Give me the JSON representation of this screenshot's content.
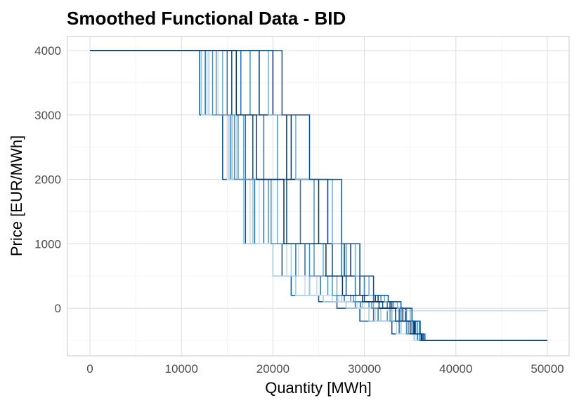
{
  "chart_data": {
    "type": "line",
    "title": "Smoothed Functional Data - BID",
    "xlabel": "Quantity [MWh]",
    "ylabel": "Price [EUR/MWh]",
    "xlim": [
      0,
      50000
    ],
    "ylim": [
      -500,
      4000
    ],
    "x_ticks": [
      0,
      10000,
      20000,
      30000,
      40000,
      50000
    ],
    "x_tick_labels": [
      "0",
      "10000",
      "20000",
      "30000",
      "40000",
      "50000"
    ],
    "y_ticks": [
      0,
      1000,
      2000,
      3000,
      4000
    ],
    "y_tick_labels": [
      "0",
      "1000",
      "2000",
      "3000",
      "4000"
    ],
    "grid": true,
    "legend": "none",
    "palette": [
      "#08306b",
      "#08519c",
      "#2171b5",
      "#4292c6",
      "#6baed6",
      "#9ecae1",
      "#c6dbef"
    ],
    "step_levels": [
      4000,
      3000,
      2000,
      1000,
      500,
      200,
      0,
      -500
    ],
    "series": [
      {
        "color": "#08519c",
        "x": [
          0,
          12000,
          14500,
          17000,
          21000,
          22000,
          25000,
          27000,
          29500,
          33000,
          36000,
          50000
        ],
        "y": [
          4000,
          3000,
          2000,
          1000,
          500,
          200,
          100,
          0,
          -200,
          -400,
          -500,
          -500
        ]
      },
      {
        "color": "#2171b5",
        "x": [
          0,
          12600,
          15400,
          18000,
          22500,
          24000,
          27000,
          29000,
          31000,
          34000,
          36500,
          50000
        ],
        "y": [
          4000,
          3000,
          2000,
          1000,
          500,
          200,
          100,
          0,
          -200,
          -400,
          -500,
          -500
        ]
      },
      {
        "color": "#4292c6",
        "x": [
          0,
          13800,
          16200,
          19500,
          24500,
          26000,
          28500,
          30500,
          32500,
          34800,
          36600,
          50000
        ],
        "y": [
          4000,
          3000,
          2000,
          1000,
          500,
          200,
          100,
          0,
          -200,
          -400,
          -500,
          -500
        ]
      },
      {
        "color": "#08306b",
        "x": [
          0,
          20000,
          22000,
          26000,
          28500,
          30000,
          31500,
          33000,
          34500,
          35500,
          36300,
          50000
        ],
        "y": [
          4000,
          3000,
          2000,
          1000,
          500,
          200,
          100,
          0,
          -200,
          -400,
          -500,
          -500
        ]
      },
      {
        "color": "#c6dbef",
        "x": [
          0,
          12800,
          15000,
          17500,
          21500,
          23500,
          26500,
          29500,
          32500,
          35000,
          36500,
          50000
        ],
        "y": [
          4000,
          3000,
          2000,
          1000,
          500,
          200,
          100,
          0,
          -40,
          -40,
          -40,
          -40
        ]
      },
      {
        "color": "#9ecae1",
        "x": [
          0,
          13000,
          15200,
          17800,
          22000,
          24000,
          27500,
          29800,
          31800,
          34000,
          35800,
          50000
        ],
        "y": [
          4000,
          3000,
          2000,
          1000,
          500,
          200,
          100,
          0,
          -200,
          -400,
          -500,
          -500
        ]
      },
      {
        "color": "#6baed6",
        "x": [
          0,
          14500,
          16800,
          20500,
          25500,
          27000,
          29000,
          31000,
          33000,
          35000,
          36400,
          50000
        ],
        "y": [
          4000,
          3000,
          2000,
          1000,
          500,
          200,
          100,
          0,
          -200,
          -400,
          -500,
          -500
        ]
      },
      {
        "color": "#08519c",
        "x": [
          0,
          15500,
          17800,
          21500,
          26500,
          28000,
          30000,
          32000,
          33800,
          35200,
          36200,
          50000
        ],
        "y": [
          4000,
          3000,
          2000,
          1000,
          500,
          200,
          100,
          0,
          -200,
          -400,
          -500,
          -500
        ]
      },
      {
        "color": "#2171b5",
        "x": [
          0,
          16500,
          19000,
          23000,
          27500,
          29000,
          31000,
          32500,
          34000,
          35600,
          36500,
          50000
        ],
        "y": [
          4000,
          3000,
          2000,
          1000,
          500,
          200,
          100,
          0,
          -200,
          -400,
          -500,
          -500
        ]
      },
      {
        "color": "#4292c6",
        "x": [
          0,
          17500,
          20500,
          24500,
          28000,
          30000,
          31800,
          33200,
          34600,
          35800,
          36600,
          50000
        ],
        "y": [
          4000,
          3000,
          2000,
          1000,
          500,
          200,
          100,
          0,
          -200,
          -400,
          -500,
          -500
        ]
      },
      {
        "color": "#08306b",
        "x": [
          0,
          18500,
          21500,
          25000,
          27800,
          29500,
          31200,
          32800,
          34200,
          35400,
          36300,
          50000
        ],
        "y": [
          4000,
          3000,
          2000,
          1000,
          500,
          200,
          100,
          0,
          -200,
          -400,
          -500,
          -500
        ]
      },
      {
        "color": "#6baed6",
        "x": [
          0,
          19500,
          22500,
          26500,
          29000,
          30500,
          32200,
          33600,
          35000,
          36000,
          36650,
          50000
        ],
        "y": [
          4000,
          3000,
          2000,
          1000,
          500,
          200,
          100,
          0,
          -200,
          -400,
          -500,
          -500
        ]
      },
      {
        "color": "#9ecae1",
        "x": [
          0,
          12200,
          15600,
          16800,
          20000,
          22500,
          25500,
          28000,
          30500,
          33500,
          35500,
          50000
        ],
        "y": [
          4000,
          3000,
          2000,
          1000,
          500,
          200,
          100,
          0,
          -200,
          -400,
          -500,
          -500
        ]
      },
      {
        "color": "#2171b5",
        "x": [
          0,
          15000,
          17000,
          19000,
          23500,
          25200,
          27800,
          29600,
          31500,
          33800,
          35800,
          50000
        ],
        "y": [
          4000,
          3000,
          2000,
          1000,
          500,
          200,
          100,
          0,
          -200,
          -400,
          -500,
          -500
        ]
      },
      {
        "color": "#08519c",
        "x": [
          0,
          21000,
          24000,
          27500,
          29500,
          31000,
          32600,
          34000,
          35200,
          36100,
          36500,
          50000
        ],
        "y": [
          4000,
          3000,
          2000,
          1000,
          500,
          200,
          100,
          0,
          -200,
          -400,
          -500,
          -500
        ]
      },
      {
        "color": "#c6dbef",
        "x": [
          0,
          14000,
          16000,
          18500,
          22800,
          24800,
          27200,
          29200,
          31200,
          33500,
          35400,
          50000
        ],
        "y": [
          4000,
          3000,
          2000,
          1000,
          500,
          200,
          100,
          0,
          -200,
          -400,
          -500,
          -500
        ]
      },
      {
        "color": "#4292c6",
        "x": [
          0,
          13400,
          15800,
          19800,
          24000,
          26500,
          28800,
          30800,
          32800,
          34600,
          36000,
          50000
        ],
        "y": [
          4000,
          3000,
          2000,
          1000,
          500,
          200,
          100,
          0,
          -200,
          -400,
          -500,
          -500
        ]
      },
      {
        "color": "#08306b",
        "x": [
          0,
          16000,
          18200,
          21200,
          25800,
          27600,
          29800,
          31600,
          33400,
          35000,
          36200,
          50000
        ],
        "y": [
          4000,
          3000,
          2000,
          1000,
          500,
          200,
          100,
          0,
          -200,
          -400,
          -500,
          -500
        ]
      }
    ]
  }
}
